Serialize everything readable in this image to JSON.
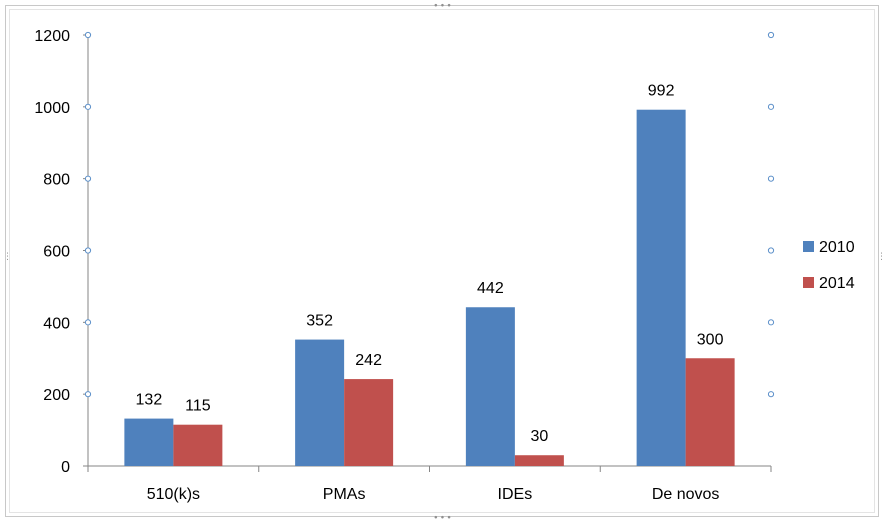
{
  "chart_data": {
    "type": "bar",
    "categories": [
      "510(k)s",
      "PMAs",
      "IDEs",
      "De novos"
    ],
    "series": [
      {
        "name": "2010",
        "values": [
          132,
          352,
          442,
          992
        ],
        "color": "#4f81bd"
      },
      {
        "name": "2014",
        "values": [
          115,
          242,
          30,
          300
        ],
        "color": "#c0504d"
      }
    ],
    "title": "",
    "xlabel": "",
    "ylabel": "",
    "ylim": [
      0,
      1200
    ],
    "yticks": [
      "0",
      "200",
      "400",
      "600",
      "800",
      "1000",
      "1200"
    ],
    "grid": false,
    "data_labels": true,
    "legend_position": "right"
  },
  "colors": {
    "axis": "#868686",
    "frame": "#c8c8c8",
    "handle": "#5b8fc9"
  }
}
